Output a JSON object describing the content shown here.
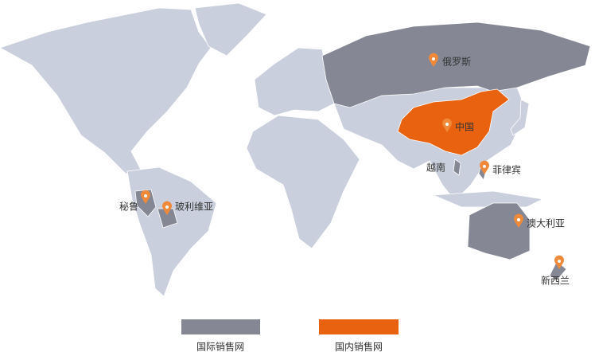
{
  "markers": [
    {
      "label": "俄罗斯"
    },
    {
      "label": "中国"
    },
    {
      "label": "越南"
    },
    {
      "label": "菲律宾"
    },
    {
      "label": "秘鲁"
    },
    {
      "label": "玻利维亚"
    },
    {
      "label": "澳大利亚"
    },
    {
      "label": "新西兰"
    }
  ],
  "legend": [
    {
      "label": "国际销售网"
    },
    {
      "label": "国内销售网"
    }
  ]
}
